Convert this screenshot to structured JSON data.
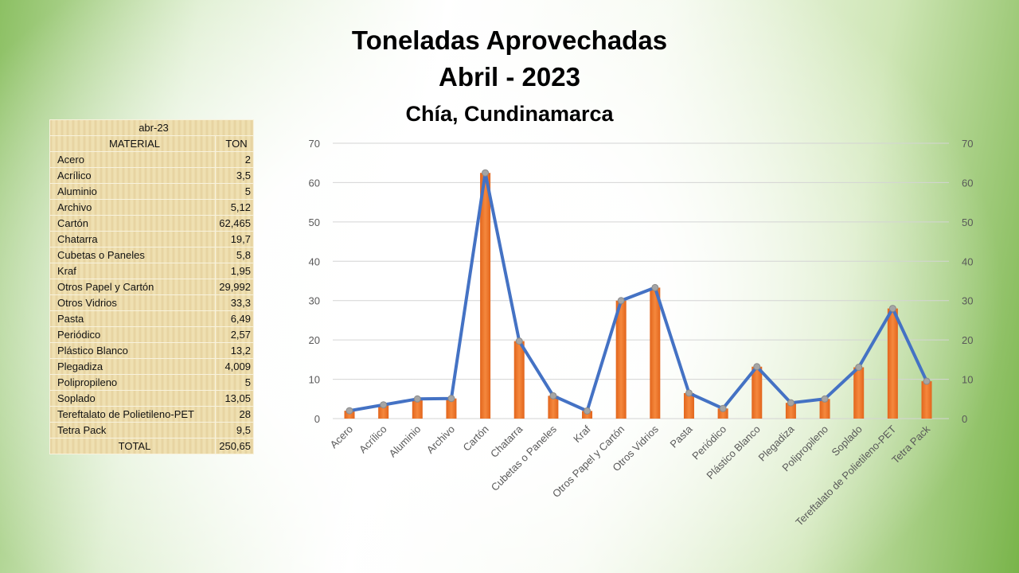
{
  "title": {
    "line1": "Toneladas Aprovechadas",
    "line2": "Abril - 2023",
    "line3": "Chía, Cundinamarca"
  },
  "table": {
    "period": "abr-23",
    "headers": [
      "MATERIAL",
      "TON"
    ],
    "rows": [
      [
        "Acero",
        "2"
      ],
      [
        "Acrílico",
        "3,5"
      ],
      [
        "Aluminio",
        "5"
      ],
      [
        "Archivo",
        "5,12"
      ],
      [
        "Cartón",
        "62,465"
      ],
      [
        "Chatarra",
        "19,7"
      ],
      [
        "Cubetas o Paneles",
        "5,8"
      ],
      [
        "Kraf",
        "1,95"
      ],
      [
        "Otros Papel y Cartón",
        "29,992"
      ],
      [
        "Otros Vidrios",
        "33,3"
      ],
      [
        "Pasta",
        "6,49"
      ],
      [
        "Periódico",
        "2,57"
      ],
      [
        "Plástico Blanco",
        "13,2"
      ],
      [
        "Plegadiza",
        "4,009"
      ],
      [
        "Polipropileno",
        "5"
      ],
      [
        "Soplado",
        "13,05"
      ],
      [
        "Tereftalato de Polietileno-PET",
        "28"
      ],
      [
        "Tetra Pack",
        "9,5"
      ]
    ],
    "total_label": "TOTAL",
    "total": "250,65"
  },
  "chart_data": {
    "type": "bar",
    "categories": [
      "Acero",
      "Acrílico",
      "Aluminio",
      "Archivo",
      "Cartón",
      "Chatarra",
      "Cubetas o Paneles",
      "Kraf",
      "Otros Papel y Cartón",
      "Otros Vidrios",
      "Pasta",
      "Periódico",
      "Plástico Blanco",
      "Plegadiza",
      "Polipropileno",
      "Soplado",
      "Tereftalato de Polietileno-PET",
      "Tetra Pack"
    ],
    "series": [
      {
        "name": "TON (bar)",
        "kind": "bar",
        "color": "#ed7d31",
        "values": [
          2,
          3.5,
          5,
          5.12,
          62.465,
          19.7,
          5.8,
          1.95,
          29.992,
          33.3,
          6.49,
          2.57,
          13.2,
          4.009,
          5,
          13.05,
          28,
          9.5
        ]
      },
      {
        "name": "TON (line)",
        "kind": "line",
        "color": "#4472c4",
        "values": [
          2,
          3.5,
          5,
          5.12,
          62.465,
          19.7,
          5.8,
          1.95,
          29.992,
          33.3,
          6.49,
          2.57,
          13.2,
          4.009,
          5,
          13.05,
          28,
          9.5
        ]
      }
    ],
    "ylim": [
      0,
      70
    ],
    "yticks": [
      0,
      10,
      20,
      30,
      40,
      50,
      60,
      70
    ],
    "secondary_yticks": [
      0,
      10,
      20,
      30,
      40,
      50,
      60,
      70
    ],
    "grid": true
  }
}
